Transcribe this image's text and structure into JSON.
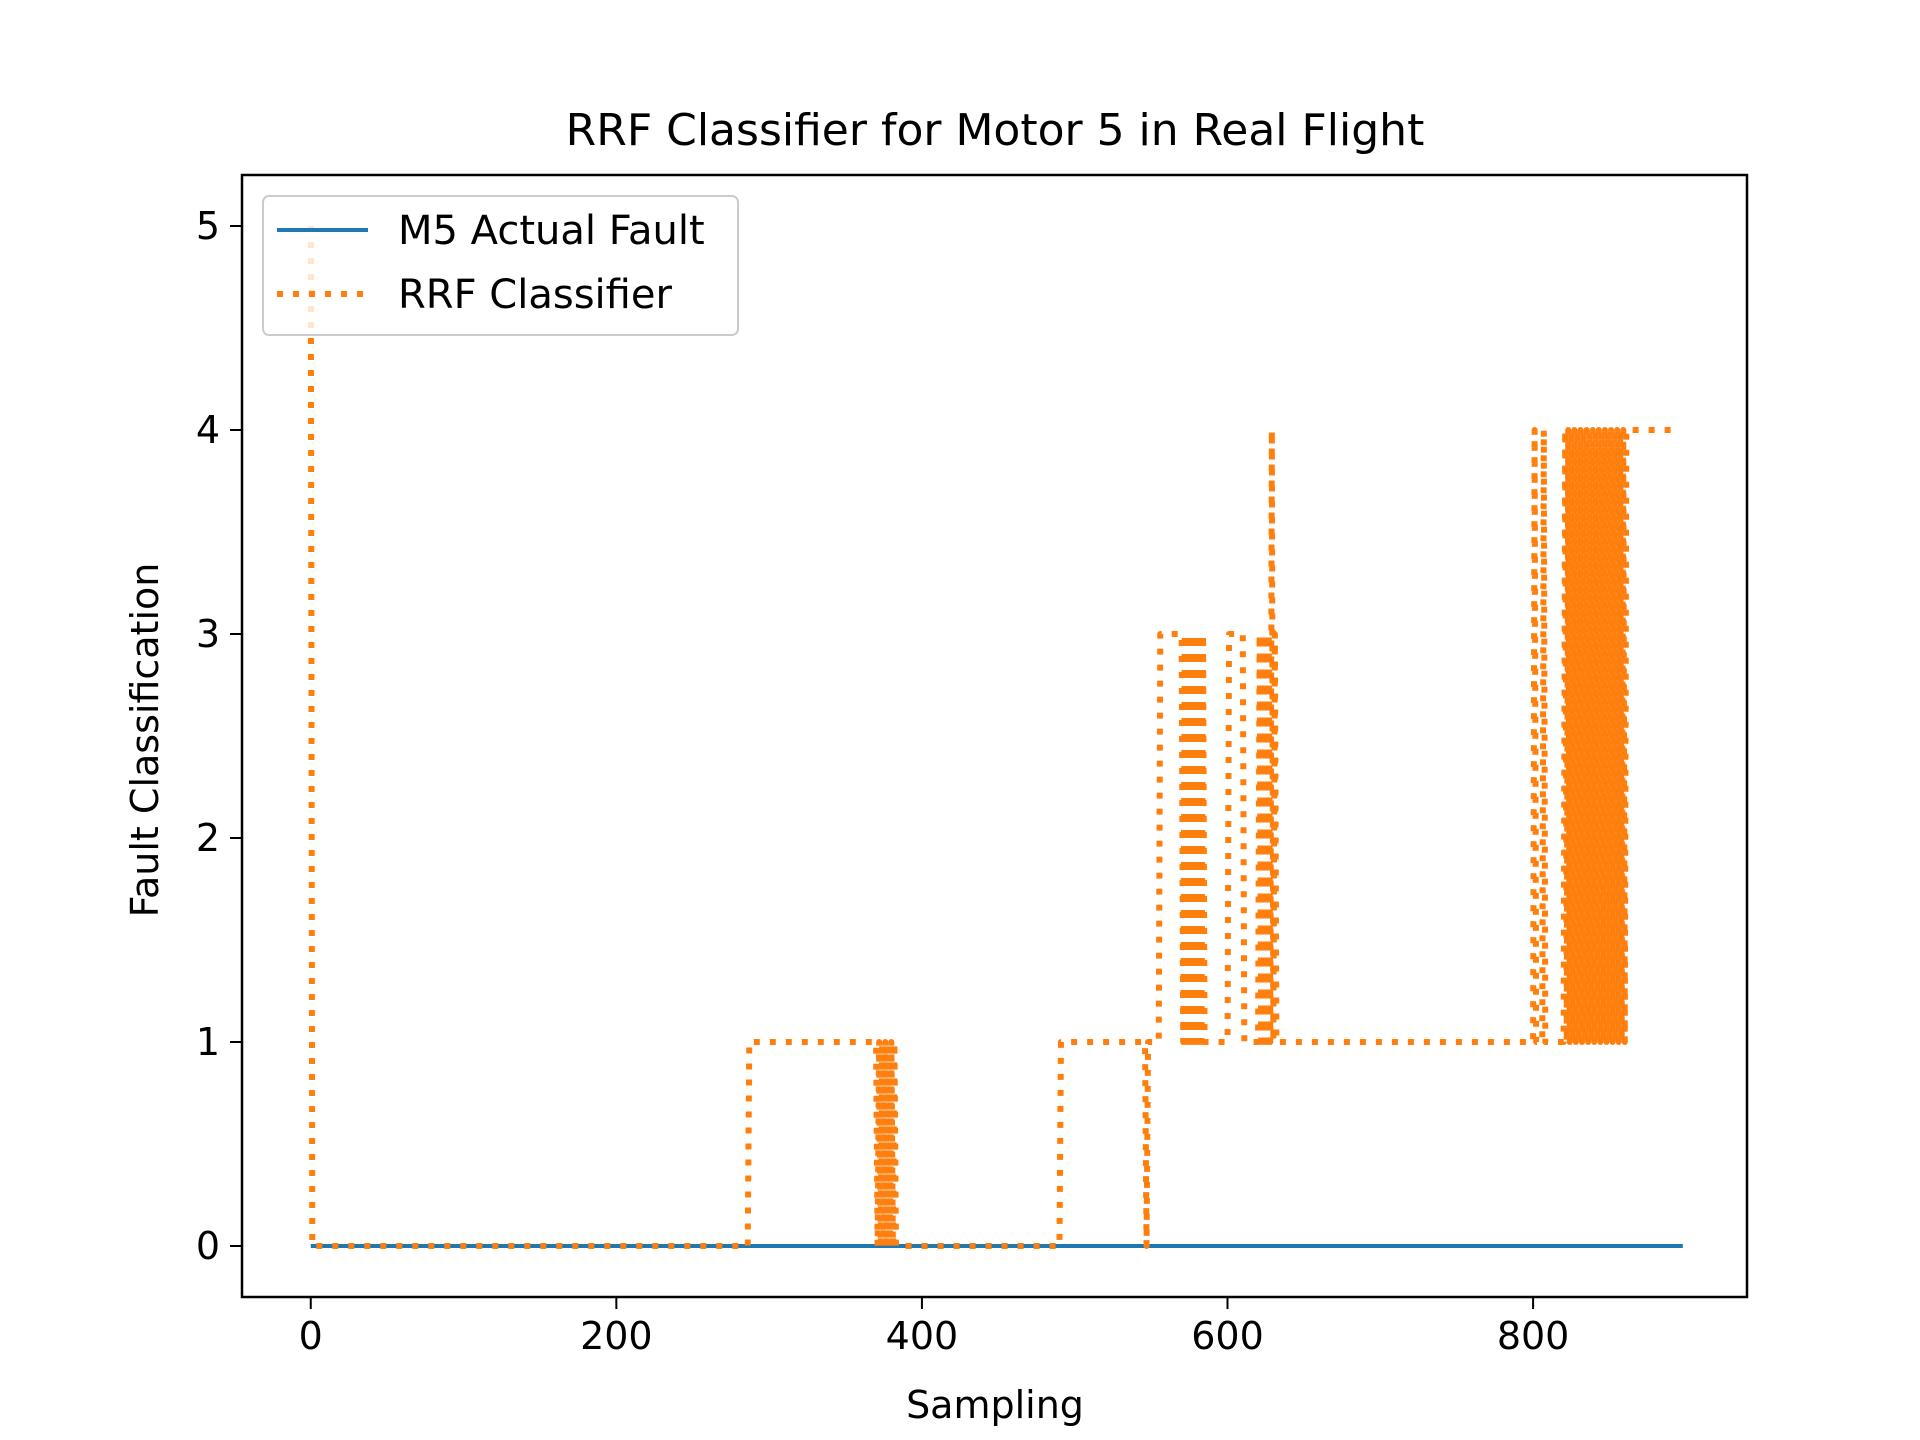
{
  "chart_data": {
    "type": "line",
    "title": "RRF Classifier for Motor 5 in Real Flight",
    "xlabel": "Sampling",
    "ylabel": "Fault Classification",
    "xlim": [
      -45,
      940
    ],
    "ylim": [
      -0.25,
      5.25
    ],
    "xticks": [
      0,
      200,
      400,
      600,
      800
    ],
    "yticks": [
      0,
      1,
      2,
      3,
      4,
      5
    ],
    "xtick_labels": [
      "0",
      "200",
      "400",
      "600",
      "800"
    ],
    "ytick_labels": [
      "0",
      "1",
      "2",
      "3",
      "4",
      "5"
    ],
    "grid": false,
    "legend_position": "upper-left",
    "series": [
      {
        "name": "M5 Actual Fault",
        "color": "#1f77b4",
        "style": "solid",
        "x": [
          0,
          898
        ],
        "y": [
          0,
          0
        ]
      },
      {
        "name": "RRF Classifier",
        "color": "#ff7f0e",
        "style": "dotted",
        "x": [
          0,
          1,
          2,
          286,
          287,
          370,
          371,
          372,
          373,
          374,
          375,
          376,
          377,
          378,
          379,
          380,
          381,
          382,
          383,
          384,
          490,
          491,
          546,
          547,
          548,
          555,
          556,
          570,
          571,
          572,
          573,
          574,
          575,
          576,
          577,
          578,
          579,
          580,
          581,
          582,
          583,
          584,
          585,
          600,
          601,
          610,
          611,
          620,
          621,
          622,
          623,
          624,
          625,
          626,
          627,
          628,
          629,
          630,
          631,
          632,
          800,
          801,
          802,
          806,
          807,
          808,
          820,
          821,
          822,
          823,
          824,
          825,
          826,
          827,
          828,
          829,
          830,
          831,
          832,
          833,
          834,
          835,
          836,
          837,
          838,
          839,
          840,
          841,
          842,
          843,
          844,
          845,
          846,
          847,
          848,
          849,
          850,
          851,
          852,
          853,
          854,
          855,
          856,
          857,
          858,
          859,
          860,
          861,
          862,
          895
        ],
        "y": [
          5,
          0,
          0,
          0,
          1,
          1,
          0,
          1,
          0,
          1,
          0,
          1,
          0,
          1,
          0,
          1,
          0,
          1,
          0,
          0,
          0,
          1,
          1,
          0,
          1,
          1,
          3,
          3,
          1,
          3,
          1,
          3,
          1,
          3,
          1,
          3,
          1,
          3,
          1,
          3,
          1,
          3,
          1,
          1,
          3,
          3,
          1,
          1,
          3,
          1,
          3,
          1,
          3,
          1,
          3,
          1,
          4,
          1,
          3,
          1,
          1,
          4,
          1,
          1,
          4,
          1,
          1,
          4,
          1,
          4,
          1,
          4,
          1,
          4,
          1,
          4,
          1,
          4,
          1,
          4,
          1,
          4,
          1,
          4,
          1,
          4,
          1,
          4,
          1,
          4,
          1,
          4,
          1,
          4,
          1,
          4,
          1,
          4,
          1,
          4,
          1,
          4,
          1,
          4,
          1,
          4,
          1,
          4,
          4,
          4
        ]
      }
    ]
  }
}
